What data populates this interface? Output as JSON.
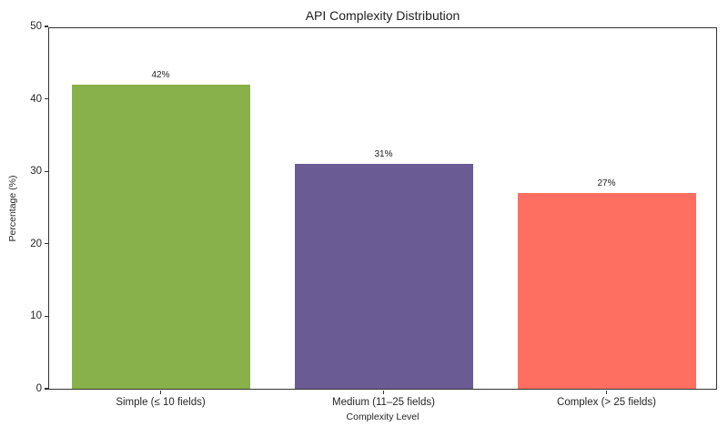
{
  "chart_data": {
    "type": "bar",
    "title": "API Complexity Distribution",
    "xlabel": "Complexity Level",
    "ylabel": "Percentage (%)",
    "categories": [
      "Simple (≤ 10 fields)",
      "Medium (11–25 fields)",
      "Complex (> 25 fields)"
    ],
    "values": [
      42,
      31,
      27
    ],
    "value_labels": [
      "42%",
      "31%",
      "27%"
    ],
    "bar_colors": [
      "#88B04B",
      "#6B5B95",
      "#FF6F61"
    ],
    "ylim": [
      0,
      50
    ],
    "yticks": [
      0,
      10,
      20,
      30,
      40,
      50
    ],
    "grid": false,
    "legend": null,
    "frame": "full-box",
    "background_color": "#ffffff",
    "spine_color": "#333333",
    "text_color": "#262626"
  }
}
